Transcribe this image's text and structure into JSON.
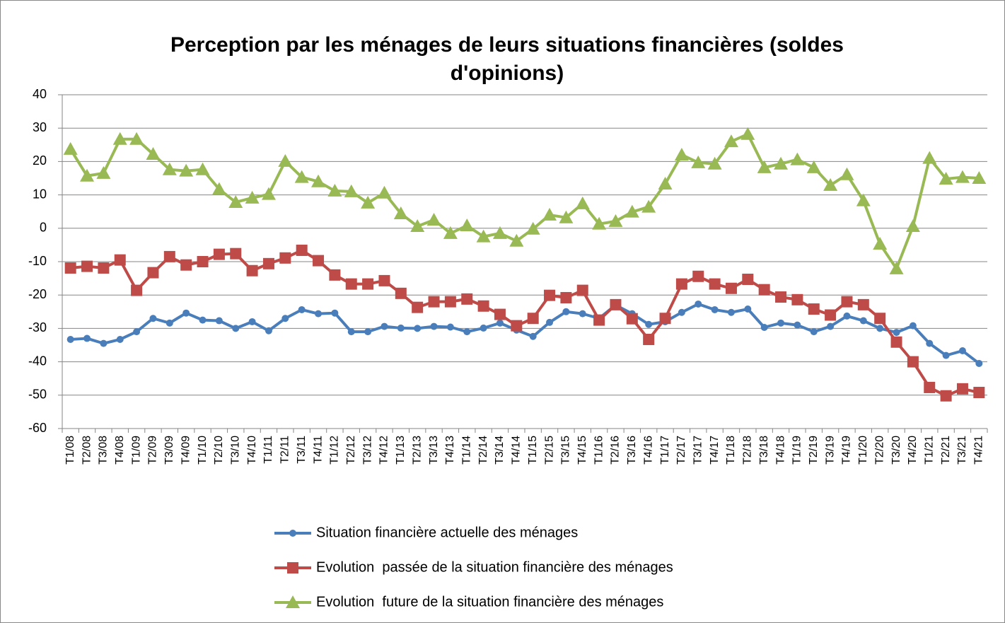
{
  "chart_data": {
    "type": "line",
    "title": "Perception par les ménages de leurs situations financières (soldes d'opinions)",
    "categories": [
      "T1/08",
      "T2/08",
      "T3/08",
      "T4/08",
      "T1/09",
      "T2/09",
      "T3/09",
      "T4/09",
      "T1/10",
      "T2/10",
      "T3/10",
      "T4/10",
      "T1/11",
      "T2/11",
      "T3/11",
      "T4/11",
      "T1/12",
      "T2/12",
      "T3/12",
      "T4/12",
      "T1/13",
      "T2/13",
      "T3/13",
      "T4/13",
      "T1/14",
      "T2/14",
      "T3/14",
      "T4/14",
      "T1/15",
      "T2/15",
      "T3/15",
      "T4/15",
      "T1/16",
      "T2/16",
      "T3/16",
      "T4/16",
      "T1/17",
      "T2/17",
      "T3/17",
      "T4/17",
      "T1/18",
      "T2/18",
      "T3/18",
      "T4/18",
      "T1/19",
      "T2/19",
      "T3/19",
      "T4/19",
      "T1/20",
      "T2/20",
      "T3/20",
      "T4/20",
      "T1/21",
      "T2/21",
      "T3/21",
      "T4/21"
    ],
    "series": [
      {
        "name": "Situation financière actuelle des ménages",
        "color": "#4a7ebb",
        "marker": "circle",
        "values": [
          -33.3,
          -33,
          -34.5,
          -33.3,
          -31,
          -27,
          -28.4,
          -25.4,
          -27.5,
          -27.7,
          -30,
          -28,
          -30.7,
          -27,
          -24.4,
          -25.6,
          -25.4,
          -31,
          -31,
          -29.4,
          -29.9,
          -30,
          -29.4,
          -29.6,
          -31,
          -29.9,
          -28.4,
          -30.5,
          -32.4,
          -28.2,
          -25,
          -25.6,
          -27,
          -23,
          -25.6,
          -28.8,
          -28,
          -25.2,
          -22.7,
          -24.4,
          -25.2,
          -24.2,
          -29.7,
          -28.4,
          -29,
          -31,
          -29.4,
          -26.3,
          -27.7,
          -30,
          -31.2,
          -29.2,
          -34.5,
          -38.1,
          -36.7,
          -40.5
        ]
      },
      {
        "name": "Evolution  passée de la situation financière des ménages",
        "color": "#be4b48",
        "marker": "square",
        "values": [
          -11.9,
          -11.4,
          -11.9,
          -9.5,
          -18.6,
          -13.3,
          -8.5,
          -11,
          -10,
          -7.8,
          -7.6,
          -12.7,
          -10.6,
          -8.9,
          -6.6,
          -9.7,
          -14,
          -16.7,
          -16.7,
          -15.7,
          -19.5,
          -23.7,
          -22,
          -22,
          -21.2,
          -23.3,
          -25.8,
          -29.2,
          -27,
          -20.1,
          -20.8,
          -18.6,
          -27.5,
          -22.9,
          -27.1,
          -33.3,
          -27,
          -16.7,
          -14.4,
          -16.7,
          -18,
          -15.3,
          -18.4,
          -20.6,
          -21.4,
          -24.2,
          -26,
          -22,
          -22.9,
          -27,
          -34.1,
          -40,
          -47.7,
          -50.2,
          -48.1,
          -49.2
        ]
      },
      {
        "name": "Evolution  future de la situation financière des ménages",
        "color": "#98b954",
        "marker": "triangle",
        "values": [
          23.7,
          15.7,
          16.5,
          26.7,
          26.7,
          22.2,
          17.6,
          17.2,
          17.6,
          11.7,
          7.8,
          9.1,
          10.2,
          20.1,
          15.3,
          14,
          11.2,
          11,
          7.6,
          10.6,
          4.4,
          0.6,
          2.5,
          -1.5,
          0.8,
          -2.5,
          -1.5,
          -3.8,
          -0.2,
          4,
          3.2,
          7.4,
          1.3,
          2.1,
          4.9,
          6.4,
          13.3,
          22,
          19.7,
          19.3,
          26,
          28.2,
          18.2,
          19.3,
          20.6,
          18.2,
          12.9,
          16.1,
          8.3,
          -4.7,
          -12.1,
          0.6,
          21,
          14.8,
          15.3,
          15
        ]
      }
    ],
    "ylim": [
      -60,
      40
    ],
    "yticks": [
      -60,
      -50,
      -40,
      -30,
      -20,
      -10,
      0,
      10,
      20,
      30,
      40
    ],
    "grid": true,
    "legend": "bottom"
  }
}
